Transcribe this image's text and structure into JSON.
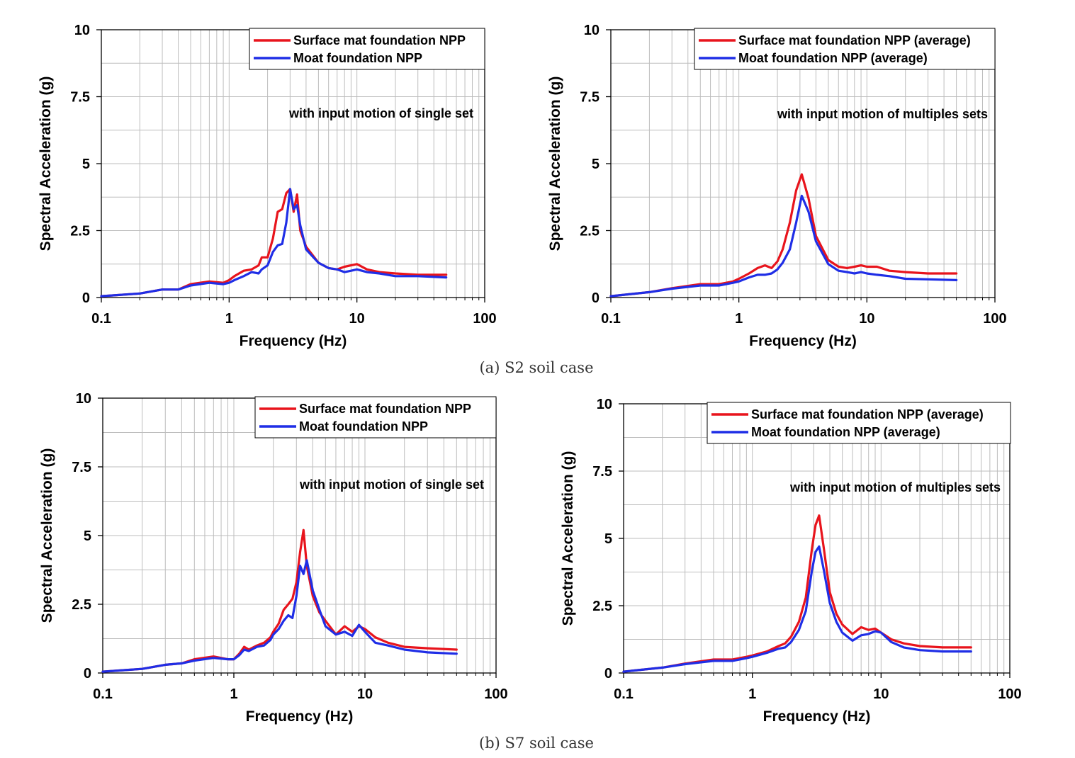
{
  "captions": [
    "(a) S2 soil case",
    "(b) S7 soil case"
  ],
  "colors": {
    "surface": "#e8141c",
    "moat": "#1f2ee6"
  },
  "chart_data": [
    {
      "type": "line",
      "panel": "a-left",
      "xlabel": "Frequency (Hz)",
      "ylabel": "Spectral Acceleration (g)",
      "xscale": "log",
      "xlim": [
        0.1,
        100
      ],
      "ylim": [
        0,
        10
      ],
      "xticks": [
        "0.1",
        "1",
        "10",
        "100"
      ],
      "yticks": [
        "0",
        "2.5",
        "5",
        "7.5",
        "10"
      ],
      "annotation": "with input motion of single set",
      "legend": [
        "Surface mat foundation NPP",
        "Moat foundation NPP"
      ],
      "series": [
        {
          "name": "Surface mat foundation NPP",
          "x": [
            0.1,
            0.2,
            0.3,
            0.4,
            0.5,
            0.7,
            0.9,
            1.0,
            1.1,
            1.3,
            1.5,
            1.7,
            1.8,
            2.0,
            2.2,
            2.4,
            2.6,
            2.8,
            3.0,
            3.2,
            3.4,
            3.6,
            4.0,
            5.0,
            6.0,
            7.0,
            8.0,
            9.0,
            10,
            12,
            15,
            20,
            30,
            50
          ],
          "values": [
            0.05,
            0.15,
            0.3,
            0.3,
            0.5,
            0.6,
            0.55,
            0.65,
            0.8,
            1.0,
            1.05,
            1.2,
            1.5,
            1.5,
            2.2,
            3.2,
            3.3,
            3.9,
            4.05,
            3.2,
            3.85,
            2.5,
            1.9,
            1.3,
            1.1,
            1.05,
            1.15,
            1.2,
            1.25,
            1.05,
            0.95,
            0.9,
            0.85,
            0.85
          ]
        },
        {
          "name": "Moat foundation NPP",
          "x": [
            0.1,
            0.2,
            0.3,
            0.4,
            0.5,
            0.7,
            0.9,
            1.0,
            1.1,
            1.3,
            1.5,
            1.7,
            1.8,
            2.0,
            2.2,
            2.4,
            2.6,
            2.8,
            3.0,
            3.2,
            3.4,
            3.6,
            4.0,
            5.0,
            6.0,
            7.0,
            8.0,
            9.0,
            10,
            12,
            15,
            20,
            30,
            50
          ],
          "values": [
            0.05,
            0.15,
            0.3,
            0.3,
            0.45,
            0.55,
            0.5,
            0.55,
            0.65,
            0.8,
            0.95,
            0.9,
            1.05,
            1.2,
            1.7,
            1.95,
            2.0,
            2.8,
            4.05,
            3.3,
            3.45,
            2.7,
            1.8,
            1.3,
            1.1,
            1.05,
            0.95,
            1.0,
            1.05,
            0.95,
            0.9,
            0.8,
            0.8,
            0.75
          ]
        }
      ]
    },
    {
      "type": "line",
      "panel": "a-right",
      "xlabel": "Frequency (Hz)",
      "ylabel": "Spectral Acceleration (g)",
      "xscale": "log",
      "xlim": [
        0.1,
        100
      ],
      "ylim": [
        0,
        10
      ],
      "xticks": [
        "0.1",
        "1",
        "10",
        "100"
      ],
      "yticks": [
        "0",
        "2.5",
        "5",
        "7.5",
        "10"
      ],
      "annotation": "with input motion of multiples sets",
      "legend": [
        "Surface mat foundation NPP (average)",
        "Moat foundation NPP (average)"
      ],
      "series": [
        {
          "name": "Surface mat foundation NPP (average)",
          "x": [
            0.1,
            0.2,
            0.3,
            0.5,
            0.7,
            0.9,
            1.0,
            1.2,
            1.4,
            1.6,
            1.8,
            2.0,
            2.2,
            2.5,
            2.8,
            3.1,
            3.5,
            4.0,
            5.0,
            6.0,
            7.0,
            8.0,
            9.0,
            10,
            12,
            15,
            20,
            30,
            50
          ],
          "values": [
            0.05,
            0.2,
            0.35,
            0.5,
            0.5,
            0.6,
            0.7,
            0.9,
            1.1,
            1.2,
            1.1,
            1.35,
            1.8,
            2.8,
            4.0,
            4.6,
            3.7,
            2.3,
            1.4,
            1.15,
            1.1,
            1.15,
            1.2,
            1.15,
            1.15,
            1.0,
            0.95,
            0.9,
            0.9
          ]
        },
        {
          "name": "Moat foundation NPP (average)",
          "x": [
            0.1,
            0.2,
            0.3,
            0.5,
            0.7,
            0.9,
            1.0,
            1.2,
            1.4,
            1.6,
            1.8,
            2.0,
            2.2,
            2.5,
            2.8,
            3.1,
            3.5,
            4.0,
            5.0,
            6.0,
            7.0,
            8.0,
            9.0,
            10,
            12,
            15,
            20,
            30,
            50
          ],
          "values": [
            0.05,
            0.2,
            0.33,
            0.45,
            0.45,
            0.55,
            0.6,
            0.75,
            0.85,
            0.85,
            0.9,
            1.05,
            1.3,
            1.8,
            2.8,
            3.8,
            3.2,
            2.1,
            1.25,
            1.0,
            0.95,
            0.9,
            0.95,
            0.9,
            0.85,
            0.8,
            0.7,
            0.68,
            0.65
          ]
        }
      ]
    },
    {
      "type": "line",
      "panel": "b-left",
      "xlabel": "Frequency (Hz)",
      "ylabel": "Spectral Acceleration (g)",
      "xscale": "log",
      "xlim": [
        0.1,
        100
      ],
      "ylim": [
        0,
        10
      ],
      "xticks": [
        "0.1",
        "1",
        "10",
        "100"
      ],
      "yticks": [
        "0",
        "2.5",
        "5",
        "7.5",
        "10"
      ],
      "annotation": "with input motion of single set",
      "legend": [
        "Surface mat foundation NPP",
        "Moat foundation NPP"
      ],
      "series": [
        {
          "name": "Surface mat foundation NPP",
          "x": [
            0.1,
            0.2,
            0.3,
            0.4,
            0.5,
            0.7,
            0.9,
            1.0,
            1.1,
            1.2,
            1.3,
            1.5,
            1.7,
            1.9,
            2.0,
            2.2,
            2.4,
            2.6,
            2.8,
            3.0,
            3.2,
            3.4,
            3.6,
            4.0,
            4.5,
            5.0,
            6.0,
            7.0,
            8.0,
            9.0,
            10,
            12,
            15,
            20,
            30,
            50
          ],
          "values": [
            0.05,
            0.15,
            0.3,
            0.35,
            0.5,
            0.6,
            0.5,
            0.5,
            0.7,
            0.95,
            0.85,
            1.0,
            1.1,
            1.3,
            1.5,
            1.8,
            2.3,
            2.5,
            2.7,
            3.3,
            4.4,
            5.2,
            3.9,
            2.8,
            2.2,
            1.9,
            1.4,
            1.7,
            1.5,
            1.7,
            1.6,
            1.3,
            1.1,
            0.95,
            0.9,
            0.85
          ]
        },
        {
          "name": "Moat foundation NPP",
          "x": [
            0.1,
            0.2,
            0.3,
            0.4,
            0.5,
            0.7,
            0.9,
            1.0,
            1.1,
            1.2,
            1.3,
            1.5,
            1.7,
            1.9,
            2.0,
            2.2,
            2.4,
            2.6,
            2.8,
            3.0,
            3.2,
            3.4,
            3.6,
            4.0,
            4.5,
            5.0,
            6.0,
            7.0,
            8.0,
            9.0,
            10,
            12,
            15,
            20,
            30,
            50
          ],
          "values": [
            0.05,
            0.15,
            0.3,
            0.35,
            0.45,
            0.55,
            0.5,
            0.5,
            0.65,
            0.85,
            0.8,
            0.95,
            1.0,
            1.2,
            1.4,
            1.6,
            1.9,
            2.1,
            2.0,
            2.8,
            3.9,
            3.6,
            4.1,
            3.0,
            2.3,
            1.7,
            1.4,
            1.5,
            1.35,
            1.75,
            1.5,
            1.1,
            1.0,
            0.85,
            0.75,
            0.7
          ]
        }
      ]
    },
    {
      "type": "line",
      "panel": "b-right",
      "xlabel": "Frequency (Hz)",
      "ylabel": "Spectral Acceleration (g)",
      "xscale": "log",
      "xlim": [
        0.1,
        100
      ],
      "ylim": [
        0,
        10
      ],
      "xticks": [
        "0.1",
        "1",
        "10",
        "100"
      ],
      "yticks": [
        "0",
        "2.5",
        "5",
        "7.5",
        "10"
      ],
      "annotation": "with input motion of multiples sets",
      "legend": [
        "Surface mat foundation NPP (average)",
        "Moat foundation NPP (average)"
      ],
      "series": [
        {
          "name": "Surface mat foundation NPP (average)",
          "x": [
            0.1,
            0.2,
            0.3,
            0.5,
            0.7,
            0.9,
            1.0,
            1.3,
            1.6,
            1.8,
            2.0,
            2.3,
            2.6,
            2.9,
            3.1,
            3.3,
            3.6,
            4.0,
            4.5,
            5.0,
            6.0,
            7.0,
            8.0,
            9.0,
            10,
            12,
            15,
            20,
            30,
            50
          ],
          "values": [
            0.05,
            0.2,
            0.35,
            0.5,
            0.5,
            0.6,
            0.65,
            0.8,
            1.0,
            1.1,
            1.35,
            1.9,
            2.8,
            4.6,
            5.5,
            5.85,
            4.6,
            3.0,
            2.2,
            1.8,
            1.45,
            1.7,
            1.6,
            1.65,
            1.5,
            1.25,
            1.1,
            1.0,
            0.95,
            0.95
          ]
        },
        {
          "name": "Moat foundation NPP (average)",
          "x": [
            0.1,
            0.2,
            0.3,
            0.5,
            0.7,
            0.9,
            1.0,
            1.3,
            1.6,
            1.8,
            2.0,
            2.3,
            2.6,
            2.9,
            3.1,
            3.3,
            3.6,
            4.0,
            4.5,
            5.0,
            6.0,
            7.0,
            8.0,
            9.0,
            10,
            12,
            15,
            20,
            30,
            50
          ],
          "values": [
            0.05,
            0.2,
            0.33,
            0.45,
            0.45,
            0.55,
            0.6,
            0.75,
            0.9,
            0.95,
            1.15,
            1.6,
            2.3,
            3.8,
            4.5,
            4.7,
            3.8,
            2.6,
            1.9,
            1.5,
            1.2,
            1.4,
            1.45,
            1.55,
            1.5,
            1.15,
            0.95,
            0.85,
            0.8,
            0.8
          ]
        }
      ]
    }
  ]
}
